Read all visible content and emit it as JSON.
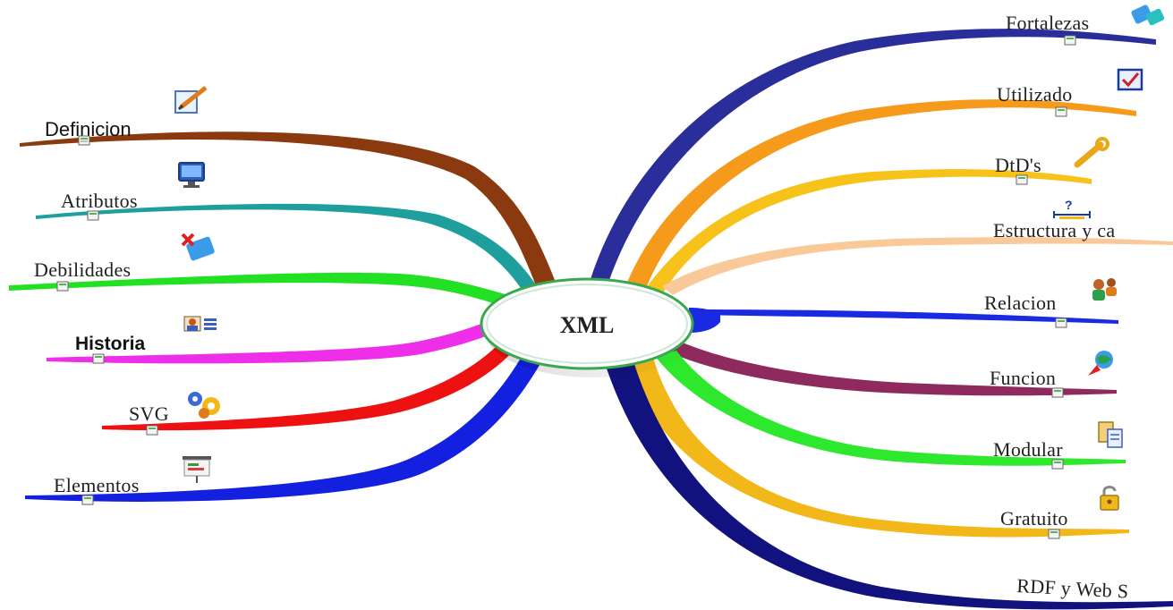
{
  "center": {
    "label": "XML",
    "fill": "#ffffff",
    "border": "#3aa84f"
  },
  "left_branches": [
    {
      "label": "Definicion",
      "color": "#8b3a0f",
      "icon": "edit-pencil-icon"
    },
    {
      "label": "Atributos",
      "color": "#1f9e9e",
      "icon": "monitor-icon"
    },
    {
      "label": "Debilidades",
      "color": "#22e022",
      "icon": "puzzle-x-icon"
    },
    {
      "label": "Historia",
      "color": "#ee2ee8",
      "icon": "person-card-icon"
    },
    {
      "label": "SVG",
      "color": "#ee1111",
      "icon": "gears-icon"
    },
    {
      "label": "Elementos",
      "color": "#1420e0",
      "icon": "presentation-icon"
    }
  ],
  "right_branches": [
    {
      "label": "Fortalezas",
      "color": "#2a2e9a",
      "icon": "puzzle-icon"
    },
    {
      "label": "Utilizado",
      "color": "#f59a1a",
      "icon": "checkbox-icon"
    },
    {
      "label": "DtD's",
      "color": "#f7c21a",
      "icon": "wrench-icon"
    },
    {
      "label": "Estructura y ca",
      "color": "#fac99a",
      "icon": "measure-question-icon"
    },
    {
      "label": "Relacion",
      "color": "#1a2ae0",
      "icon": "people-icon"
    },
    {
      "label": "Funcion",
      "color": "#8e2a5e",
      "icon": "globe-arrow-icon"
    },
    {
      "label": "Modular",
      "color": "#2ee82e",
      "icon": "documents-icon"
    },
    {
      "label": "Gratuito",
      "color": "#f2b81a",
      "icon": "padlock-icon"
    },
    {
      "label": "RDF y Web S",
      "color": "#12127e",
      "icon": ""
    }
  ]
}
